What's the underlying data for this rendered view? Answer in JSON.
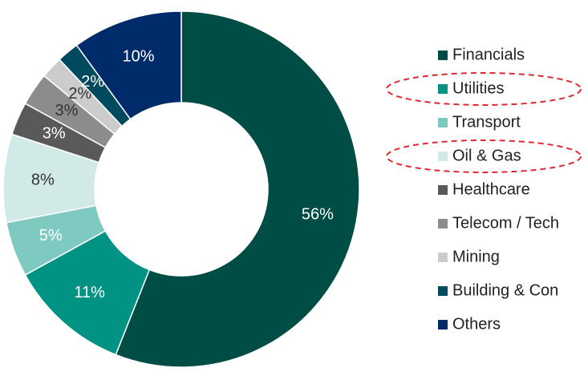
{
  "chart_data": {
    "type": "donut",
    "categories": [
      "Financials",
      "Utilities",
      "Transport",
      "Oil & Gas",
      "Healthcare",
      "Telecom / Tech",
      "Mining",
      "Building & Con",
      "Others"
    ],
    "values": [
      56,
      11,
      5,
      8,
      3,
      3,
      2,
      2,
      10
    ],
    "value_labels": [
      "56%",
      "11%",
      "5%",
      "8%",
      "3%",
      "3%",
      "2%",
      "2%",
      "10%"
    ],
    "colors": [
      "#004d45",
      "#009384",
      "#7fcac0",
      "#d2eae7",
      "#595959",
      "#8c8c8c",
      "#cccccc",
      "#004a5f",
      "#002b6b"
    ],
    "label_colors": [
      "#ffffff",
      "#ffffff",
      "#ffffff",
      "#333333",
      "#ffffff",
      "#333333",
      "#333333",
      "#ffffff",
      "#ffffff"
    ],
    "legend": "right"
  }
}
